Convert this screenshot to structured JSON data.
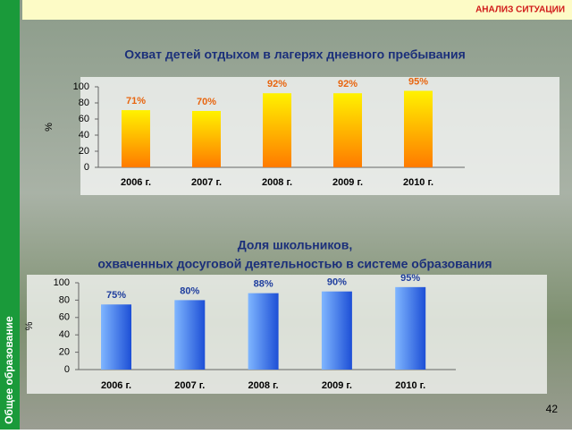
{
  "header": "АНАЛИЗ СИТУАЦИИ",
  "sidebar": "Общее образование",
  "page_number": "42",
  "chart_data": [
    {
      "type": "bar",
      "title": [
        "Охват детей отдыхом в лагерях дневного пребывания"
      ],
      "y_label": "%",
      "categories": [
        "2006 г.",
        "2007 г.",
        "2008 г.",
        "2009 г.",
        "2010 г."
      ],
      "values": [
        71,
        70,
        92,
        92,
        95
      ],
      "value_labels": [
        "71%",
        "70%",
        "92%",
        "92%",
        "95%"
      ],
      "gradient": [
        "#fff200",
        "#ff7a00"
      ],
      "label_color": "#e8650f",
      "ylim": [
        0,
        100
      ],
      "yticks": [
        0,
        20,
        40,
        60,
        80,
        100
      ]
    },
    {
      "type": "bar",
      "title": [
        "Доля школьников,",
        "охваченных досуговой деятельностью в системе образования"
      ],
      "y_label": "%",
      "categories": [
        "2006 г.",
        "2007 г.",
        "2008 г.",
        "2009 г.",
        "2010 г."
      ],
      "values": [
        75,
        80,
        88,
        90,
        95
      ],
      "value_labels": [
        "75%",
        "80%",
        "88%",
        "90%",
        "95%"
      ],
      "gradient": [
        "#7fb6ff",
        "#1d4fd6"
      ],
      "label_color": "#1f3e9e",
      "ylim": [
        0,
        100
      ],
      "yticks": [
        0,
        20,
        40,
        60,
        80,
        100
      ]
    }
  ]
}
